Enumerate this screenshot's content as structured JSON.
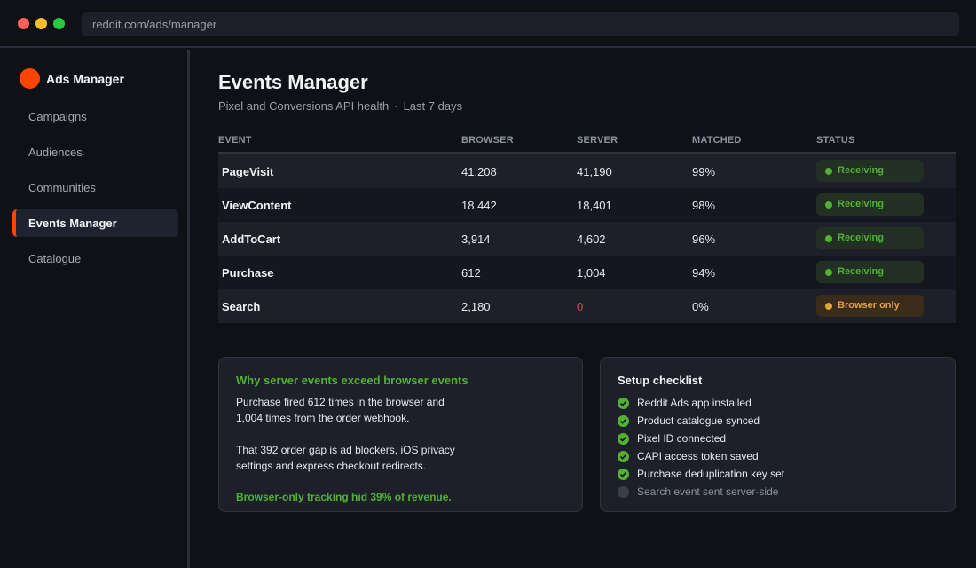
{
  "browser": {
    "url": "reddit.com/ads/manager"
  },
  "sidebar": {
    "brand": "Ads Manager",
    "items": [
      {
        "label": "Campaigns"
      },
      {
        "label": "Audiences"
      },
      {
        "label": "Communities"
      },
      {
        "label": "Events Manager",
        "active": true
      },
      {
        "label": "Catalogue"
      }
    ]
  },
  "main": {
    "title": "Events Manager",
    "subtitle": "Pixel and Conversions API health",
    "subtitle_separator": "·",
    "range": "Last 7 days"
  },
  "table": {
    "headers": {
      "event": "EVENT",
      "browser": "BROWSER",
      "server": "SERVER",
      "matched": "MATCHED",
      "status": "STATUS"
    },
    "rows": [
      {
        "event": "PageVisit",
        "browser": "41,208",
        "server": "41,190",
        "matched": "99%",
        "status": "Receiving"
      },
      {
        "event": "ViewContent",
        "browser": "18,442",
        "server": "18,401",
        "matched": "98%",
        "status": "Receiving"
      },
      {
        "event": "AddToCart",
        "browser": "3,914",
        "server": "4,602",
        "matched": "96%",
        "status": "Receiving"
      },
      {
        "event": "Purchase",
        "browser": "612",
        "server": "1,004",
        "matched": "94%",
        "status": "Receiving"
      },
      {
        "event": "Search",
        "browser": "2,180",
        "server": "0",
        "matched": "0%",
        "status": "Browser only"
      }
    ]
  },
  "explain_card": {
    "title": "Why server events exceed browser events",
    "line1": "Purchase fired 612 times in the browser and",
    "line2": "1,004 times from the order webhook.",
    "line3": "That 392 order gap is ad blockers, iOS privacy",
    "line4": "settings and express checkout redirects.",
    "conclusion": "Browser-only tracking hid 39% of revenue."
  },
  "checklist": {
    "title": "Setup checklist",
    "items": [
      {
        "label": "Reddit Ads app installed",
        "done": true
      },
      {
        "label": "Product catalogue synced",
        "done": true
      },
      {
        "label": "Pixel ID connected",
        "done": true
      },
      {
        "label": "CAPI access token saved",
        "done": true
      },
      {
        "label": "Purchase deduplication key set",
        "done": true
      },
      {
        "label": "Search event sent server-side",
        "done": false
      }
    ]
  },
  "colors": {
    "accent": "#ff4500",
    "success": "#4fb233",
    "warning": "#e8a23a",
    "danger": "#e0484b"
  }
}
